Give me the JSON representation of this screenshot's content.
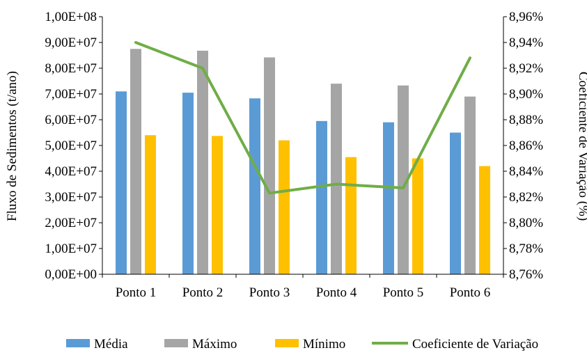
{
  "chart_data": {
    "type": "bar",
    "categories": [
      "Ponto 1",
      "Ponto 2",
      "Ponto 3",
      "Ponto 4",
      "Ponto 5",
      "Ponto 6"
    ],
    "series": [
      {
        "name": "Média",
        "kind": "bar",
        "axis": "left",
        "color": "#5B9BD5",
        "values": [
          71000000,
          70500000,
          68300000,
          59500000,
          59000000,
          55000000
        ]
      },
      {
        "name": "Máximo",
        "kind": "bar",
        "axis": "left",
        "color": "#A5A5A5",
        "values": [
          87500000,
          86800000,
          84200000,
          74000000,
          73300000,
          69000000
        ]
      },
      {
        "name": "Mínimo",
        "kind": "bar",
        "axis": "left",
        "color": "#FFC000",
        "values": [
          54000000,
          53700000,
          52000000,
          45500000,
          45000000,
          42000000
        ]
      },
      {
        "name": "Coeficiente de Variação",
        "kind": "line",
        "axis": "right",
        "color": "#70AD47",
        "values": [
          8.94,
          8.92,
          8.823,
          8.83,
          8.827,
          8.928
        ]
      }
    ],
    "xlabel": "",
    "ylabel": "Fluxo de Sedimentos (t/ano)",
    "y2label": "Coeficiente de Variação (%)",
    "ylim": [
      0,
      100000000
    ],
    "y2lim": [
      8.76,
      8.96
    ],
    "yticks": [
      "0,00E+00",
      "1,00E+07",
      "2,00E+07",
      "3,00E+07",
      "4,00E+07",
      "5,00E+07",
      "6,00E+07",
      "7,00E+07",
      "8,00E+07",
      "9,00E+07",
      "1,00E+08"
    ],
    "y2ticks": [
      "8,76%",
      "8,78%",
      "8,80%",
      "8,82%",
      "8,84%",
      "8,86%",
      "8,88%",
      "8,90%",
      "8,92%",
      "8,94%",
      "8,96%"
    ],
    "grid": false,
    "legend_position": "bottom"
  }
}
